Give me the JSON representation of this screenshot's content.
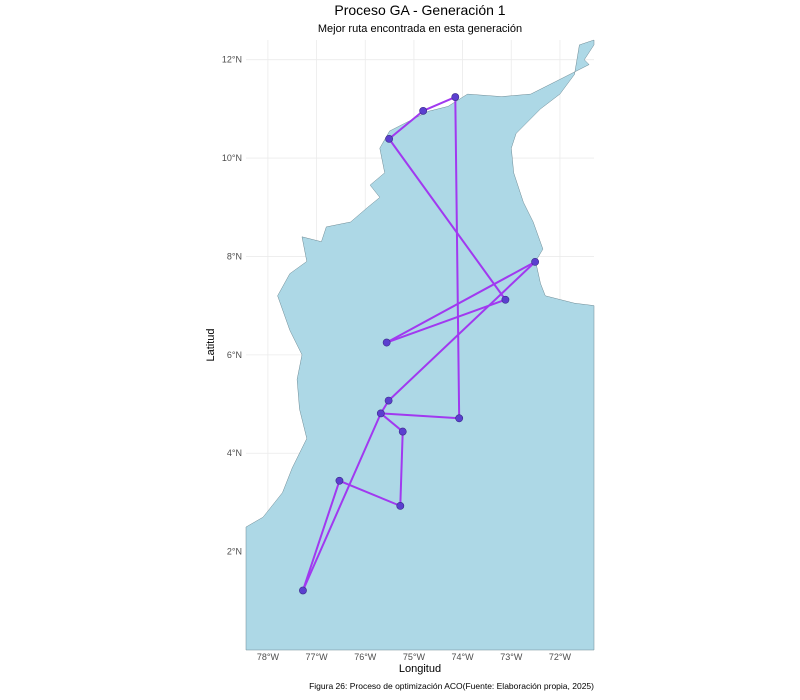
{
  "chart_data": {
    "type": "map-route",
    "title": "Proceso GA - Generación 1",
    "subtitle": "Mejor ruta encontrada en esta generación",
    "xlabel": "Longitud",
    "ylabel": "Latitud",
    "caption": "Figura 26: Proceso de optimización ACO(Fuente: Elaboración propia, 2025)",
    "xlim": [
      -78.45,
      -71.3
    ],
    "ylim": [
      0.0,
      12.4
    ],
    "x_ticks": [
      {
        "value": -78,
        "label": "78°W"
      },
      {
        "value": -77,
        "label": "77°W"
      },
      {
        "value": -76,
        "label": "76°W"
      },
      {
        "value": -75,
        "label": "75°W"
      },
      {
        "value": -74,
        "label": "74°W"
      },
      {
        "value": -73,
        "label": "73°W"
      },
      {
        "value": -72,
        "label": "72°W"
      }
    ],
    "y_ticks": [
      {
        "value": 2,
        "label": "2°N"
      },
      {
        "value": 4,
        "label": "4°N"
      },
      {
        "value": 6,
        "label": "6°N"
      },
      {
        "value": 8,
        "label": "8°N"
      },
      {
        "value": 10,
        "label": "10°N"
      },
      {
        "value": 12,
        "label": "12°N"
      }
    ],
    "grid": true,
    "land_color": "#add8e6",
    "land_border_color": "#6e8a94",
    "route_color": "#a139f0",
    "point_color": "#5b3fcf",
    "land_outline": [
      [
        -78.45,
        0.0
      ],
      [
        -71.3,
        0.0
      ],
      [
        -71.3,
        7.0
      ],
      [
        -71.7,
        7.05
      ],
      [
        -72.3,
        7.2
      ],
      [
        -72.4,
        7.45
      ],
      [
        -72.5,
        7.9
      ],
      [
        -72.35,
        8.15
      ],
      [
        -72.55,
        8.7
      ],
      [
        -72.75,
        9.1
      ],
      [
        -72.95,
        9.7
      ],
      [
        -73.0,
        10.2
      ],
      [
        -72.9,
        10.5
      ],
      [
        -72.4,
        11.0
      ],
      [
        -72.0,
        11.3
      ],
      [
        -71.7,
        11.7
      ],
      [
        -71.6,
        12.3
      ],
      [
        -71.3,
        12.4
      ],
      [
        -71.3,
        12.3
      ],
      [
        -71.5,
        12.0
      ],
      [
        -71.4,
        11.9
      ],
      [
        -72.1,
        11.55
      ],
      [
        -72.6,
        11.3
      ],
      [
        -73.2,
        11.25
      ],
      [
        -73.9,
        11.3
      ],
      [
        -74.3,
        11.05
      ],
      [
        -74.7,
        10.95
      ],
      [
        -75.2,
        10.7
      ],
      [
        -75.5,
        10.55
      ],
      [
        -75.7,
        10.2
      ],
      [
        -75.6,
        9.7
      ],
      [
        -75.9,
        9.45
      ],
      [
        -75.7,
        9.2
      ],
      [
        -75.95,
        9.0
      ],
      [
        -76.3,
        8.7
      ],
      [
        -76.8,
        8.6
      ],
      [
        -76.9,
        8.3
      ],
      [
        -77.3,
        8.4
      ],
      [
        -77.2,
        7.9
      ],
      [
        -77.55,
        7.65
      ],
      [
        -77.8,
        7.2
      ],
      [
        -77.55,
        6.5
      ],
      [
        -77.3,
        6.0
      ],
      [
        -77.4,
        5.5
      ],
      [
        -77.35,
        4.9
      ],
      [
        -77.2,
        4.3
      ],
      [
        -77.5,
        3.7
      ],
      [
        -77.7,
        3.2
      ],
      [
        -78.1,
        2.7
      ],
      [
        -78.45,
        2.5
      ]
    ],
    "route": [
      {
        "lon": -74.15,
        "lat": 11.24
      },
      {
        "lon": -74.81,
        "lat": 10.96
      },
      {
        "lon": -75.51,
        "lat": 10.39
      },
      {
        "lon": -73.12,
        "lat": 7.12
      },
      {
        "lon": -75.56,
        "lat": 6.25
      },
      {
        "lon": -72.51,
        "lat": 7.89
      },
      {
        "lon": -75.52,
        "lat": 5.07
      },
      {
        "lon": -75.68,
        "lat": 4.81
      },
      {
        "lon": -75.23,
        "lat": 4.44
      },
      {
        "lon": -75.28,
        "lat": 2.93
      },
      {
        "lon": -76.53,
        "lat": 3.44
      },
      {
        "lon": -77.28,
        "lat": 1.21
      },
      {
        "lon": -75.68,
        "lat": 4.81
      },
      {
        "lon": -74.07,
        "lat": 4.71
      },
      {
        "lon": -74.15,
        "lat": 11.24
      }
    ]
  }
}
